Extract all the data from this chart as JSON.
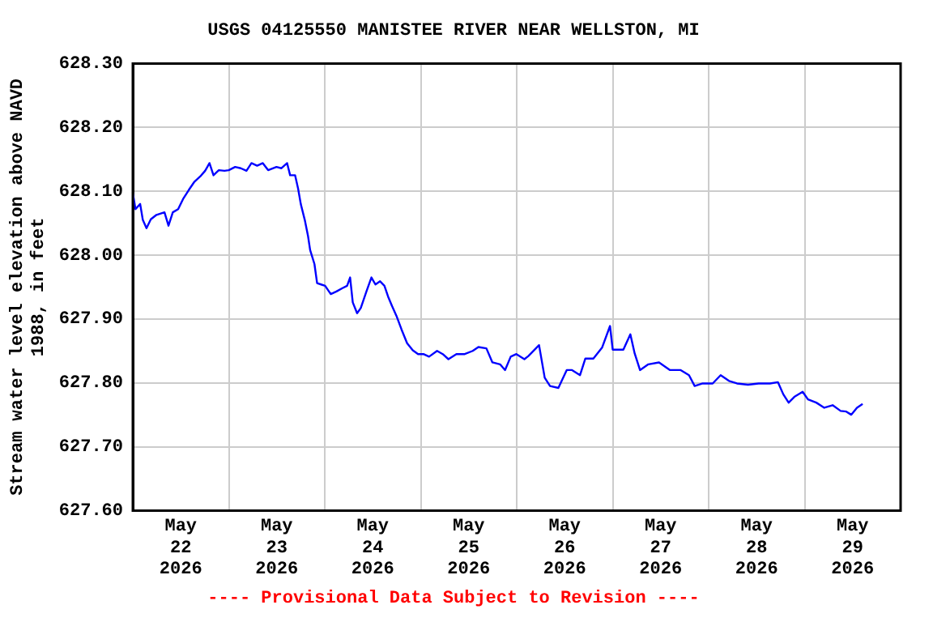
{
  "chart_data": {
    "type": "line",
    "title": "USGS 04125550 MANISTEE RIVER NEAR WELLSTON, MI",
    "ylabel": "Stream water level elevation above NAVD\n1988, in feet",
    "annotations": [
      "---- Provisional Data Subject to Revision ----"
    ],
    "x": [
      "2026-05-22T00:00",
      "2026-05-22T00:40",
      "2026-05-22T01:50",
      "2026-05-22T02:30",
      "2026-05-22T03:25",
      "2026-05-22T04:30",
      "2026-05-22T05:55",
      "2026-05-22T07:55",
      "2026-05-22T08:55",
      "2026-05-22T10:00",
      "2026-05-22T11:20",
      "2026-05-22T12:40",
      "2026-05-22T14:00",
      "2026-05-22T15:25",
      "2026-05-22T16:50",
      "2026-05-22T18:05",
      "2026-05-22T19:10",
      "2026-05-22T20:10",
      "2026-05-22T21:30",
      "2026-05-22T22:55",
      "2026-05-23T00:00",
      "2026-05-23T01:35",
      "2026-05-23T03:00",
      "2026-05-23T04:25",
      "2026-05-23T05:40",
      "2026-05-23T07:05",
      "2026-05-23T08:30",
      "2026-05-23T09:50",
      "2026-05-23T11:55",
      "2026-05-23T13:10",
      "2026-05-23T14:35",
      "2026-05-23T15:20",
      "2026-05-23T16:35",
      "2026-05-23T17:20",
      "2026-05-23T18:00",
      "2026-05-23T19:00",
      "2026-05-23T19:50",
      "2026-05-23T20:20",
      "2026-05-23T21:25",
      "2026-05-23T22:05",
      "2026-05-23T23:05",
      "2026-05-24T00:05",
      "2026-05-24T01:30",
      "2026-05-24T02:55",
      "2026-05-24T04:20",
      "2026-05-24T05:35",
      "2026-05-24T06:20",
      "2026-05-24T07:00",
      "2026-05-24T08:05",
      "2026-05-24T09:00",
      "2026-05-24T10:25",
      "2026-05-24T11:40",
      "2026-05-24T12:40",
      "2026-05-24T13:50",
      "2026-05-24T14:55",
      "2026-05-24T15:50",
      "2026-05-24T16:50",
      "2026-05-24T17:55",
      "2026-05-24T19:10",
      "2026-05-24T20:35",
      "2026-05-24T22:00",
      "2026-05-24T23:20",
      "2026-05-25T00:40",
      "2026-05-25T02:05",
      "2026-05-25T04:05",
      "2026-05-25T05:30",
      "2026-05-25T06:55",
      "2026-05-25T08:55",
      "2026-05-25T11:00",
      "2026-05-25T13:00",
      "2026-05-25T14:25",
      "2026-05-25T16:25",
      "2026-05-25T17:55",
      "2026-05-25T19:50",
      "2026-05-25T21:05",
      "2026-05-25T22:30",
      "2026-05-25T23:55",
      "2026-05-26T01:55",
      "2026-05-26T02:55",
      "2026-05-26T05:35",
      "2026-05-26T07:00",
      "2026-05-26T08:20",
      "2026-05-26T10:25",
      "2026-05-26T12:30",
      "2026-05-26T13:50",
      "2026-05-26T15:50",
      "2026-05-26T17:10",
      "2026-05-26T19:10",
      "2026-05-26T21:20",
      "2026-05-26T23:20",
      "2026-05-27T00:00",
      "2026-05-27T02:40",
      "2026-05-27T04:25",
      "2026-05-27T05:30",
      "2026-05-27T06:50",
      "2026-05-27T08:55",
      "2026-05-27T11:35",
      "2026-05-27T14:20",
      "2026-05-27T17:00",
      "2026-05-27T19:05",
      "2026-05-27T20:30",
      "2026-05-27T22:30",
      "2026-05-28T01:00",
      "2026-05-28T03:00",
      "2026-05-28T05:05",
      "2026-05-28T07:05",
      "2026-05-28T09:50",
      "2026-05-28T12:30",
      "2026-05-28T15:20",
      "2026-05-28T17:20",
      "2026-05-28T18:40",
      "2026-05-28T20:00",
      "2026-05-28T21:25",
      "2026-05-28T23:30",
      "2026-05-29T00:50",
      "2026-05-29T02:55",
      "2026-05-29T04:55",
      "2026-05-29T07:00",
      "2026-05-29T09:00",
      "2026-05-29T10:25",
      "2026-05-29T11:40",
      "2026-05-29T13:05",
      "2026-05-29T14:30"
    ],
    "series": [
      {
        "color": "#0000ff",
        "values": [
          628.097,
          628.072,
          628.08,
          628.055,
          628.042,
          628.056,
          628.063,
          628.067,
          628.046,
          628.067,
          628.072,
          628.089,
          628.102,
          628.115,
          628.123,
          628.132,
          628.144,
          628.125,
          628.133,
          628.132,
          628.133,
          628.138,
          628.136,
          628.132,
          628.144,
          628.14,
          628.144,
          628.133,
          628.138,
          628.136,
          628.144,
          628.125,
          628.125,
          628.104,
          628.08,
          628.055,
          628.029,
          628.008,
          627.986,
          627.956,
          627.954,
          627.952,
          627.939,
          627.943,
          627.948,
          627.952,
          627.965,
          627.926,
          627.909,
          627.917,
          627.943,
          627.965,
          627.954,
          627.959,
          627.952,
          627.935,
          627.92,
          627.905,
          627.884,
          627.862,
          627.851,
          627.845,
          627.845,
          627.841,
          627.85,
          627.845,
          627.837,
          627.845,
          627.845,
          627.85,
          627.856,
          627.854,
          627.832,
          627.829,
          627.82,
          627.841,
          627.845,
          627.837,
          627.842,
          627.859,
          627.808,
          627.795,
          627.792,
          627.82,
          627.82,
          627.812,
          627.838,
          627.838,
          627.855,
          627.889,
          627.852,
          627.852,
          627.876,
          627.846,
          627.82,
          627.829,
          627.832,
          627.82,
          627.82,
          627.812,
          627.795,
          627.799,
          627.799,
          627.812,
          627.803,
          627.799,
          627.797,
          627.799,
          627.799,
          627.801,
          627.782,
          627.769,
          627.778,
          627.786,
          627.774,
          627.769,
          627.761,
          627.765,
          627.756,
          627.755,
          627.75,
          627.761,
          627.767
        ]
      }
    ],
    "xlim": [
      "2026-05-22T00:00",
      "2026-05-30T00:00"
    ],
    "xticks": [
      {
        "value": "2026-05-22T12:00",
        "label": "May\n22\n2026"
      },
      {
        "value": "2026-05-23T00:00",
        "label": null
      },
      {
        "value": "2026-05-23T12:00",
        "label": "May\n23\n2026"
      },
      {
        "value": "2026-05-24T00:00",
        "label": null
      },
      {
        "value": "2026-05-24T12:00",
        "label": "May\n24\n2026"
      },
      {
        "value": "2026-05-25T00:00",
        "label": null
      },
      {
        "value": "2026-05-25T12:00",
        "label": "May\n25\n2026"
      },
      {
        "value": "2026-05-26T00:00",
        "label": null
      },
      {
        "value": "2026-05-26T12:00",
        "label": "May\n26\n2026"
      },
      {
        "value": "2026-05-27T00:00",
        "label": null
      },
      {
        "value": "2026-05-27T12:00",
        "label": "May\n27\n2026"
      },
      {
        "value": "2026-05-28T00:00",
        "label": null
      },
      {
        "value": "2026-05-28T12:00",
        "label": "May\n28\n2026"
      },
      {
        "value": "2026-05-29T00:00",
        "label": null
      },
      {
        "value": "2026-05-29T12:00",
        "label": "May\n29\n2026"
      }
    ],
    "ylim": [
      627.6,
      628.3
    ],
    "yticks": [
      {
        "value": 627.6,
        "label": "627.60"
      },
      {
        "value": 627.7,
        "label": "627.70"
      },
      {
        "value": 627.8,
        "label": "627.80"
      },
      {
        "value": 627.9,
        "label": "627.90"
      },
      {
        "value": 628.0,
        "label": "628.00"
      },
      {
        "value": 628.1,
        "label": "628.10"
      },
      {
        "value": 628.2,
        "label": "628.20"
      },
      {
        "value": 628.3,
        "label": "628.30"
      }
    ],
    "grid": true,
    "legend": false,
    "marker": "none",
    "line_style": "solid"
  }
}
